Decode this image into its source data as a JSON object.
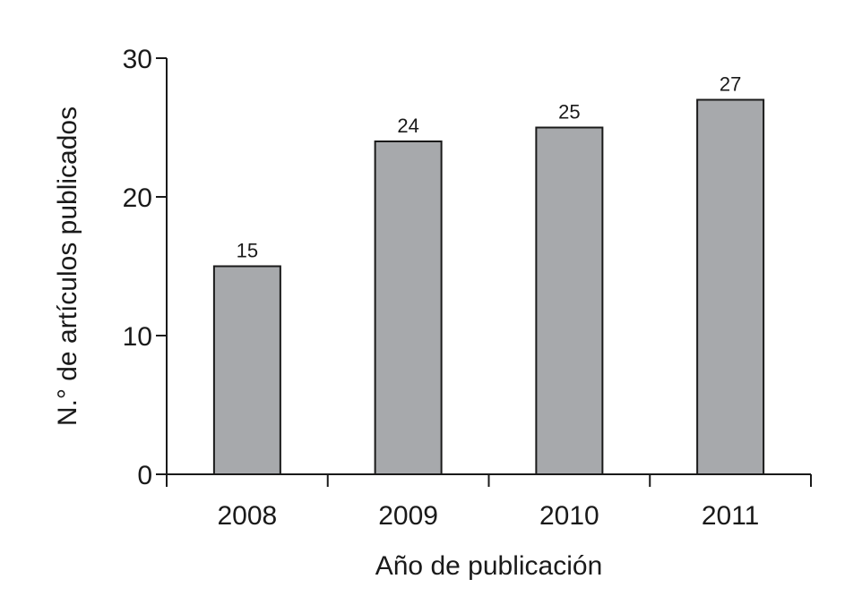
{
  "chart_data": {
    "type": "bar",
    "categories": [
      "2008",
      "2009",
      "2010",
      "2011"
    ],
    "values": [
      15,
      24,
      25,
      27
    ],
    "data_labels": [
      "15",
      "24",
      "25",
      "27"
    ],
    "title": "",
    "xlabel": "Año de publicación",
    "ylabel": "N.° de artículos publicados",
    "ylim": [
      0,
      30
    ],
    "yticks": [
      0,
      10,
      20,
      30
    ],
    "ytick_labels": [
      "0",
      "10",
      "20",
      "30"
    ],
    "grid": false,
    "legend": "none",
    "colors": {
      "bar_fill": "#a7a9ac",
      "bar_stroke": "#1a1a1a",
      "axis": "#1a1a1a"
    }
  }
}
